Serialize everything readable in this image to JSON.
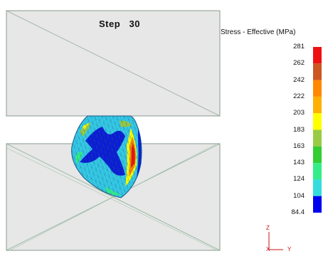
{
  "viewer": {
    "step_label": "Step",
    "step_number": "30"
  },
  "legend": {
    "title": "Stress - Effective (MPa)",
    "values": [
      "281",
      "262",
      "242",
      "222",
      "203",
      "183",
      "163",
      "143",
      "124",
      "104",
      "84.4"
    ],
    "colors": [
      "#ee1111",
      "#cc5522",
      "#ff8800",
      "#ffb000",
      "#ffff00",
      "#99cc44",
      "#33cc33",
      "#33ee88",
      "#33dddd",
      "#0000ee"
    ]
  },
  "triad": {
    "z_label": "Z",
    "x_label": "X",
    "y_label": "Y"
  },
  "colors": {
    "die_fill": "#e6e7e6",
    "die_edge": "#8a9a8e",
    "mesh_line": "#5a8a70",
    "workpiece_base": "#33cbe8",
    "workpiece_core": "#0a1bd8",
    "axis": "#d01010"
  }
}
